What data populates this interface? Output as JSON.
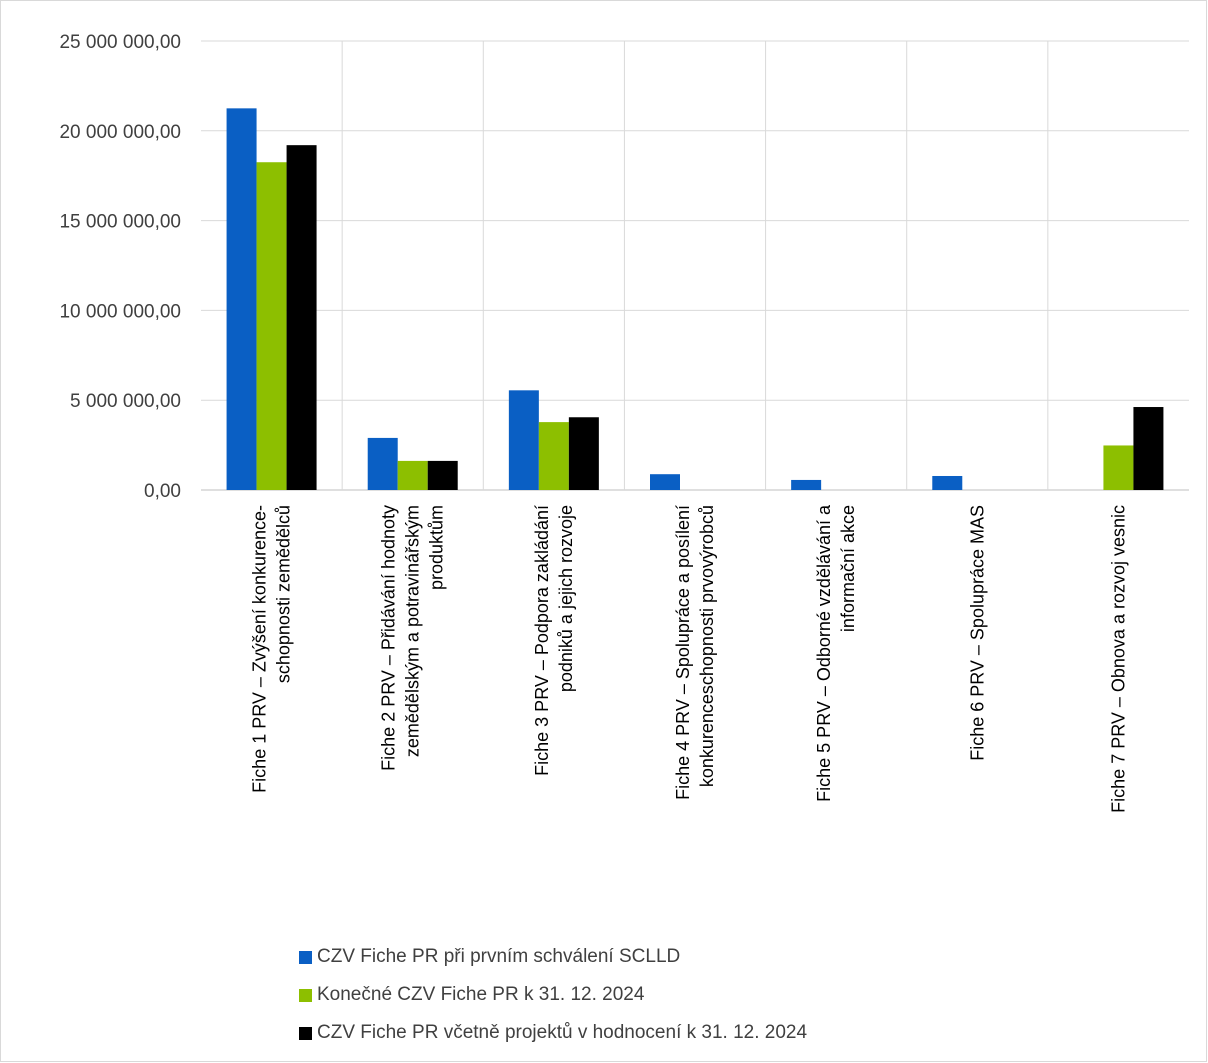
{
  "chart_data": {
    "type": "bar",
    "title": "",
    "xlabel": "",
    "ylabel": "",
    "ylim": [
      0,
      25000000
    ],
    "y_ticks": [
      "0,00",
      "5 000 000,00",
      "10 000 000,00",
      "15 000 000,00",
      "20 000 000,00",
      "25 000 000,00"
    ],
    "grid": true,
    "legend_position": "bottom",
    "categories": [
      [
        "Fiche 1 PRV – Zvýšení konkurence-",
        "schopnosti zemědělců"
      ],
      [
        "Fiche 2 PRV – Přidávání hodnoty",
        "zemědělským a potravinářským",
        "produktům"
      ],
      [
        "Fiche 3 PRV – Podpora zakládání",
        "podniků a jejich rozvoje"
      ],
      [
        "Fiche 4 PRV – Spolupráce a posílení",
        "konkurenceschopnosti prvovýrobců"
      ],
      [
        "Fiche 5 PRV – Odborné vzdělávání a",
        "informační akce"
      ],
      [
        "Fiche 6 PRV – Spolupráce MAS"
      ],
      [
        "Fiche 7 PRV – Obnova a rozvoj vesnic"
      ]
    ],
    "series": [
      {
        "name": "CZV Fiche PR při prvním schválení SCLLD",
        "color": "#0a5fc4",
        "values": [
          21250000,
          2900000,
          5550000,
          880000,
          560000,
          780000,
          0
        ]
      },
      {
        "name": "Konečné CZV Fiche PR k 31. 12. 2024",
        "color": "#8dbf00",
        "values": [
          18250000,
          1620000,
          3780000,
          0,
          0,
          0,
          2480000
        ]
      },
      {
        "name": "CZV Fiche PR včetně projektů v hodnocení k 31. 12. 2024",
        "color": "#000000",
        "values": [
          19200000,
          1620000,
          4050000,
          0,
          0,
          0,
          4620000
        ]
      }
    ]
  }
}
